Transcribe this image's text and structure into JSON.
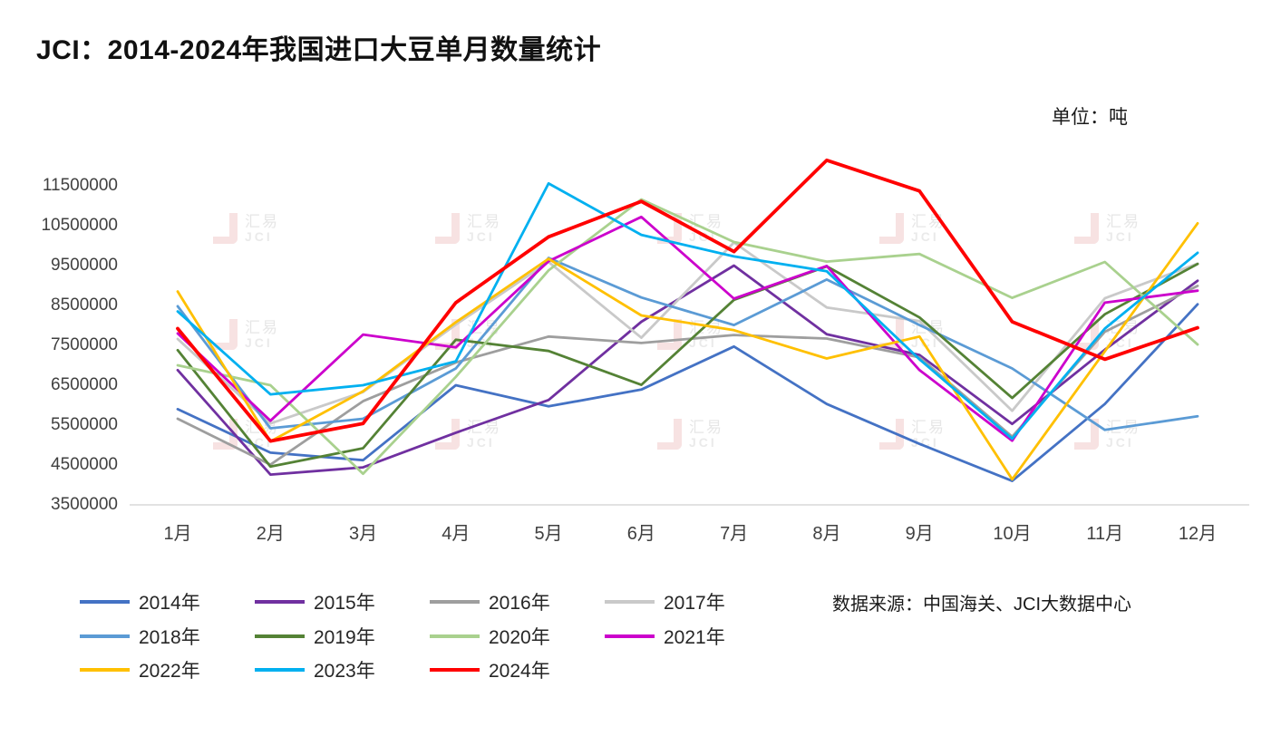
{
  "title": "JCI：2014-2024年我国进口大豆单月数量统计",
  "unit_label": "单位：吨",
  "source_label": "数据来源：中国海关、JCI大数据中心",
  "watermark": {
    "line1": "汇易",
    "line2": "JCI"
  },
  "chart_data": {
    "type": "line",
    "title": "JCI：2014-2024年我国进口大豆单月数量统计",
    "ylabel": "吨",
    "xlabel": "",
    "grid": false,
    "legend_position": "bottom",
    "ylim": [
      3500000,
      12200000
    ],
    "yticks": [
      3500000,
      4500000,
      5500000,
      6500000,
      7500000,
      8500000,
      9500000,
      10500000,
      11500000
    ],
    "categories": [
      "1月",
      "2月",
      "3月",
      "4月",
      "5月",
      "6月",
      "7月",
      "8月",
      "9月",
      "10月",
      "11月",
      "12月"
    ],
    "series": [
      {
        "name": "2014年",
        "color": "#4472C4",
        "values": [
          5900000,
          4810000,
          4620000,
          6500000,
          5970000,
          6390000,
          7470000,
          6030000,
          5030000,
          4100000,
          6030000,
          8530000
        ]
      },
      {
        "name": "2015年",
        "color": "#7030A0",
        "values": [
          6880000,
          4260000,
          4440000,
          5310000,
          6130000,
          8090000,
          9500000,
          7780000,
          7260000,
          5530000,
          7390000,
          9120000
        ]
      },
      {
        "name": "2016年",
        "color": "#9E9E9E",
        "values": [
          5660000,
          4510000,
          6100000,
          7070000,
          7720000,
          7560000,
          7760000,
          7670000,
          7200000,
          5210000,
          7840000,
          8990000
        ]
      },
      {
        "name": "2017年",
        "color": "#C9C9C9",
        "values": [
          7660000,
          5540000,
          6330000,
          8020000,
          9590000,
          7690000,
          10080000,
          8450000,
          8110000,
          5860000,
          8680000,
          9550000
        ]
      },
      {
        "name": "2018年",
        "color": "#5B9BD5",
        "values": [
          8480000,
          5420000,
          5660000,
          6920000,
          9690000,
          8700000,
          8010000,
          9150000,
          8010000,
          6920000,
          5380000,
          5720000
        ]
      },
      {
        "name": "2019年",
        "color": "#548235",
        "values": [
          7380000,
          4460000,
          4920000,
          7640000,
          7360000,
          6510000,
          8640000,
          9480000,
          8200000,
          6180000,
          8280000,
          9540000
        ]
      },
      {
        "name": "2020年",
        "color": "#A9D18E",
        "values": [
          7000000,
          6500000,
          4280000,
          6710000,
          9380000,
          11160000,
          10090000,
          9600000,
          9790000,
          8690000,
          9590000,
          7520000
        ]
      },
      {
        "name": "2021年",
        "color": "#CC00CC",
        "values": [
          7800000,
          5610000,
          7770000,
          7450000,
          9610000,
          10720000,
          8670000,
          9490000,
          6880000,
          5110000,
          8570000,
          8870000
        ]
      },
      {
        "name": "2022年",
        "color": "#FFC000",
        "values": [
          8850000,
          5090000,
          6350000,
          8080000,
          9670000,
          8250000,
          7880000,
          7170000,
          7720000,
          4140000,
          7350000,
          10560000
        ]
      },
      {
        "name": "2023年",
        "color": "#00B0F0",
        "values": [
          8350000,
          6270000,
          6500000,
          7100000,
          11560000,
          10270000,
          9730000,
          9360000,
          7150000,
          5160000,
          7920000,
          9820000
        ]
      },
      {
        "name": "2024年",
        "color": "#FF0000",
        "values": [
          7920000,
          5100000,
          5540000,
          8570000,
          10220000,
          11110000,
          9850000,
          12140000,
          11370000,
          8090000,
          7150000,
          7940000
        ]
      }
    ]
  }
}
